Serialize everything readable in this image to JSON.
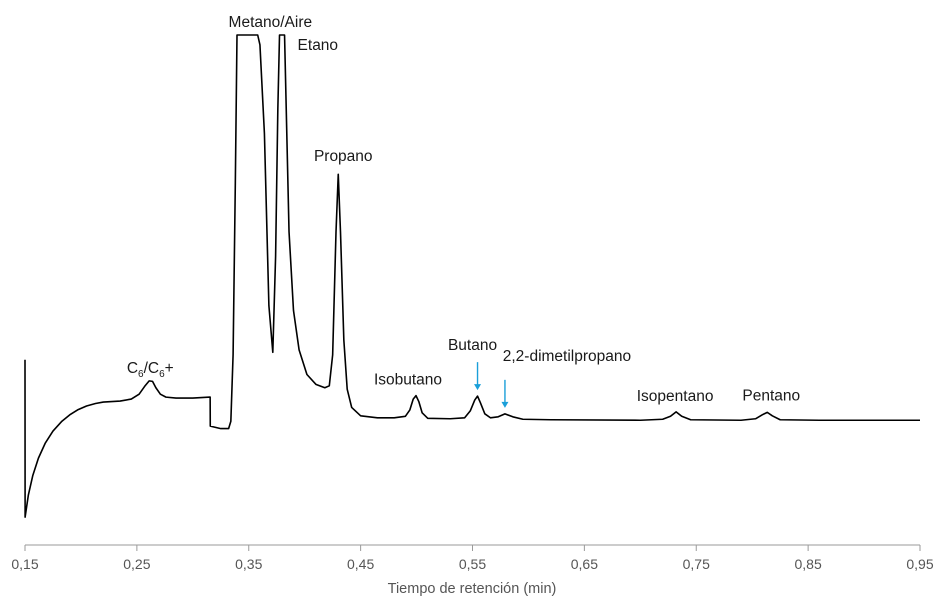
{
  "chart_data": {
    "type": "line",
    "title": "",
    "xlabel": "Tiempo de retención (min)",
    "ylabel": "",
    "xlim": [
      0.15,
      0.95
    ],
    "ylim": [
      0,
      100
    ],
    "grid": false,
    "x_ticks": [
      "0,15",
      "0,25",
      "0,35",
      "0,45",
      "0,55",
      "0,65",
      "0,75",
      "0,85",
      "0,95"
    ],
    "x_tick_values": [
      0.15,
      0.25,
      0.35,
      0.45,
      0.55,
      0.65,
      0.75,
      0.85,
      0.95
    ],
    "series": [
      {
        "points": [
          [
            0.15,
            34.0
          ],
          [
            0.1501,
            2.0
          ],
          [
            0.153,
            6.5
          ],
          [
            0.157,
            10.5
          ],
          [
            0.162,
            14.0
          ],
          [
            0.168,
            17.0
          ],
          [
            0.175,
            19.5
          ],
          [
            0.183,
            21.5
          ],
          [
            0.19,
            22.8
          ],
          [
            0.197,
            23.8
          ],
          [
            0.205,
            24.6
          ],
          [
            0.213,
            25.1
          ],
          [
            0.22,
            25.4
          ],
          [
            0.235,
            25.6
          ],
          [
            0.245,
            26.0
          ],
          [
            0.252,
            27.0
          ],
          [
            0.257,
            28.6
          ],
          [
            0.261,
            29.7
          ],
          [
            0.264,
            29.6
          ],
          [
            0.267,
            28.3
          ],
          [
            0.271,
            27.0
          ],
          [
            0.276,
            26.4
          ],
          [
            0.285,
            26.2
          ],
          [
            0.3,
            26.2
          ],
          [
            0.3155,
            26.4
          ],
          [
            0.3156,
            20.5
          ],
          [
            0.325,
            20.0
          ],
          [
            0.332,
            20.0
          ],
          [
            0.334,
            21.5
          ],
          [
            0.336,
            35.0
          ],
          [
            0.338,
            70.0
          ],
          [
            0.3395,
            100.0
          ],
          [
            0.358,
            100.0
          ],
          [
            0.36,
            98.0
          ],
          [
            0.364,
            80.0
          ],
          [
            0.368,
            45.0
          ],
          [
            0.3715,
            35.5
          ],
          [
            0.374,
            55.0
          ],
          [
            0.376,
            85.0
          ],
          [
            0.3775,
            100.0
          ],
          [
            0.382,
            100.0
          ],
          [
            0.3835,
            85.0
          ],
          [
            0.386,
            60.0
          ],
          [
            0.39,
            44.0
          ],
          [
            0.395,
            36.0
          ],
          [
            0.402,
            31.0
          ],
          [
            0.41,
            29.0
          ],
          [
            0.418,
            28.3
          ],
          [
            0.422,
            28.7
          ],
          [
            0.425,
            35.0
          ],
          [
            0.428,
            60.0
          ],
          [
            0.43,
            71.7
          ],
          [
            0.432,
            60.0
          ],
          [
            0.435,
            38.0
          ],
          [
            0.438,
            28.0
          ],
          [
            0.442,
            24.3
          ],
          [
            0.45,
            22.6
          ],
          [
            0.465,
            22.2
          ],
          [
            0.48,
            22.2
          ],
          [
            0.49,
            22.5
          ],
          [
            0.494,
            23.8
          ],
          [
            0.497,
            26.0
          ],
          [
            0.4995,
            26.7
          ],
          [
            0.502,
            25.5
          ],
          [
            0.505,
            23.2
          ],
          [
            0.51,
            22.1
          ],
          [
            0.53,
            22.0
          ],
          [
            0.543,
            22.2
          ],
          [
            0.548,
            23.6
          ],
          [
            0.552,
            25.8
          ],
          [
            0.5545,
            26.6
          ],
          [
            0.557,
            25.3
          ],
          [
            0.561,
            23.0
          ],
          [
            0.566,
            22.2
          ],
          [
            0.573,
            22.4
          ],
          [
            0.579,
            23.0
          ],
          [
            0.586,
            22.4
          ],
          [
            0.595,
            21.9
          ],
          [
            0.62,
            21.8
          ],
          [
            0.7,
            21.7
          ],
          [
            0.72,
            21.9
          ],
          [
            0.727,
            22.5
          ],
          [
            0.732,
            23.4
          ],
          [
            0.737,
            22.5
          ],
          [
            0.745,
            21.8
          ],
          [
            0.79,
            21.7
          ],
          [
            0.803,
            22.0
          ],
          [
            0.809,
            22.8
          ],
          [
            0.8135,
            23.3
          ],
          [
            0.818,
            22.6
          ],
          [
            0.825,
            21.8
          ],
          [
            0.86,
            21.7
          ],
          [
            0.95,
            21.7
          ]
        ]
      }
    ],
    "annotations": [
      {
        "label_parts": [
          "C",
          "6",
          "/C",
          "6",
          "+"
        ],
        "x": 0.262,
        "y": 29.7
      },
      {
        "label": "Metano/Aire",
        "x": 0.3675,
        "y": 100
      },
      {
        "label": "Etano",
        "x": 0.382,
        "y": 100
      },
      {
        "label": "Propano",
        "x": 0.43,
        "y": 71.7
      },
      {
        "label": "Isobutano",
        "x": 0.4995,
        "y": 26.7
      },
      {
        "label": "Butano",
        "x": 0.5545,
        "y": 26.6,
        "arrow": true,
        "arrow_color": "#1a9fd9"
      },
      {
        "label": "2,2-dimetilpropano",
        "x": 0.579,
        "y": 23.0,
        "arrow": true,
        "arrow_color": "#1a9fd9"
      },
      {
        "label": "Isopentano",
        "x": 0.732,
        "y": 23.4
      },
      {
        "label": "Pentano",
        "x": 0.8135,
        "y": 23.3
      }
    ],
    "colors": {
      "line": "#000000",
      "arrow": "#1a9fd9",
      "axis": "#9a9a9a",
      "text": "#1a1a1a",
      "tick_text": "#555555"
    }
  }
}
